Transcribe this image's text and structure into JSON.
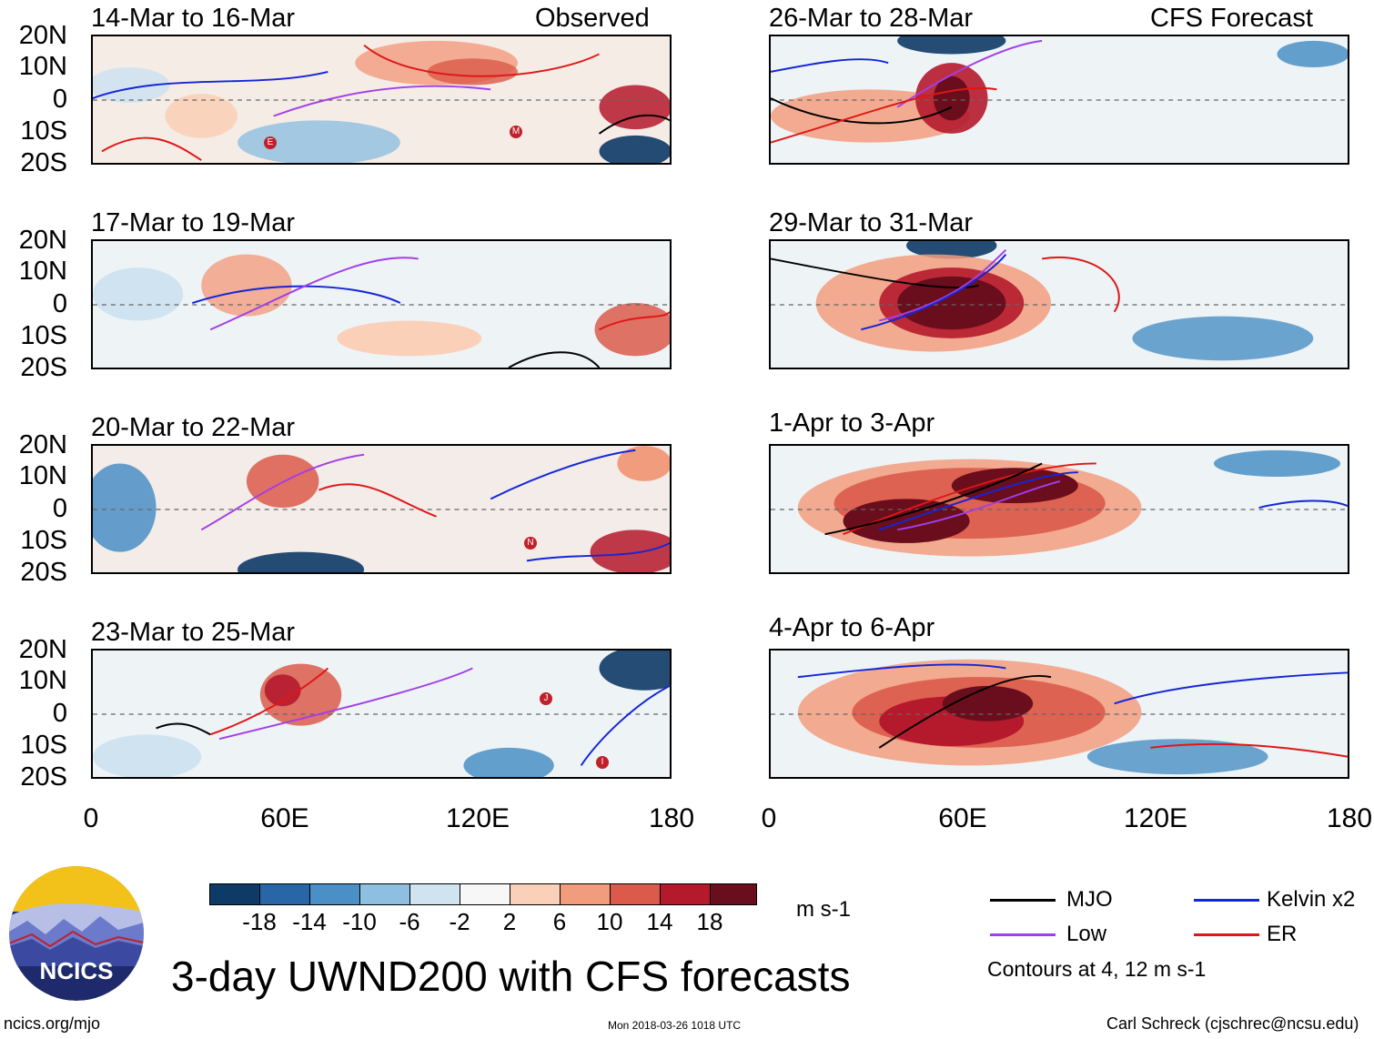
{
  "labels": {
    "observed": "Observed",
    "forecast": "CFS Forecast",
    "lat_ticks": [
      "20N",
      "10N",
      "0",
      "10S",
      "20S"
    ],
    "lon_ticks": [
      "0",
      "60E",
      "120E",
      "180"
    ]
  },
  "panels": {
    "left": [
      {
        "title": "14-Mar to 16-Mar",
        "storms": [
          "E",
          "M"
        ]
      },
      {
        "title": "17-Mar to 19-Mar",
        "storms": []
      },
      {
        "title": "20-Mar to 22-Mar",
        "storms": [
          "N"
        ]
      },
      {
        "title": "23-Mar to 25-Mar",
        "storms": [
          "J",
          "I"
        ]
      }
    ],
    "right": [
      {
        "title": "26-Mar to 28-Mar"
      },
      {
        "title": "29-Mar to 31-Mar"
      },
      {
        "title": "1-Apr to 3-Apr"
      },
      {
        "title": "4-Apr to 6-Apr"
      }
    ]
  },
  "colorbar": {
    "labels": [
      "-18",
      "-14",
      "-10",
      "-6",
      "-2",
      "2",
      "6",
      "10",
      "14",
      "18"
    ],
    "colors": [
      "#0d3a66",
      "#2866a8",
      "#4a8fc6",
      "#8fbfe0",
      "#cfe3f1",
      "#f7f7f7",
      "#fbd0b8",
      "#f29c7e",
      "#db5a4a",
      "#b5192c",
      "#6a0d1c"
    ],
    "units": "m s-1"
  },
  "legend": {
    "mjo": {
      "label": "MJO",
      "color": "#000000"
    },
    "kelvin": {
      "label": "Kelvin x2",
      "color": "#1426d8"
    },
    "low": {
      "label": "Low",
      "color": "#a23ee8"
    },
    "er": {
      "label": "ER",
      "color": "#e01616"
    },
    "contours_note": "Contours at 4, 12 m s-1"
  },
  "footer": {
    "logo_text": "NCICS",
    "main_title": "3-day UWND200 with CFS forecasts",
    "url": "ncics.org/mjo",
    "timestamp": "Mon 2018-03-26 1018 UTC",
    "author": "Carl Schreck (cjschrec@ncsu.edu)"
  }
}
